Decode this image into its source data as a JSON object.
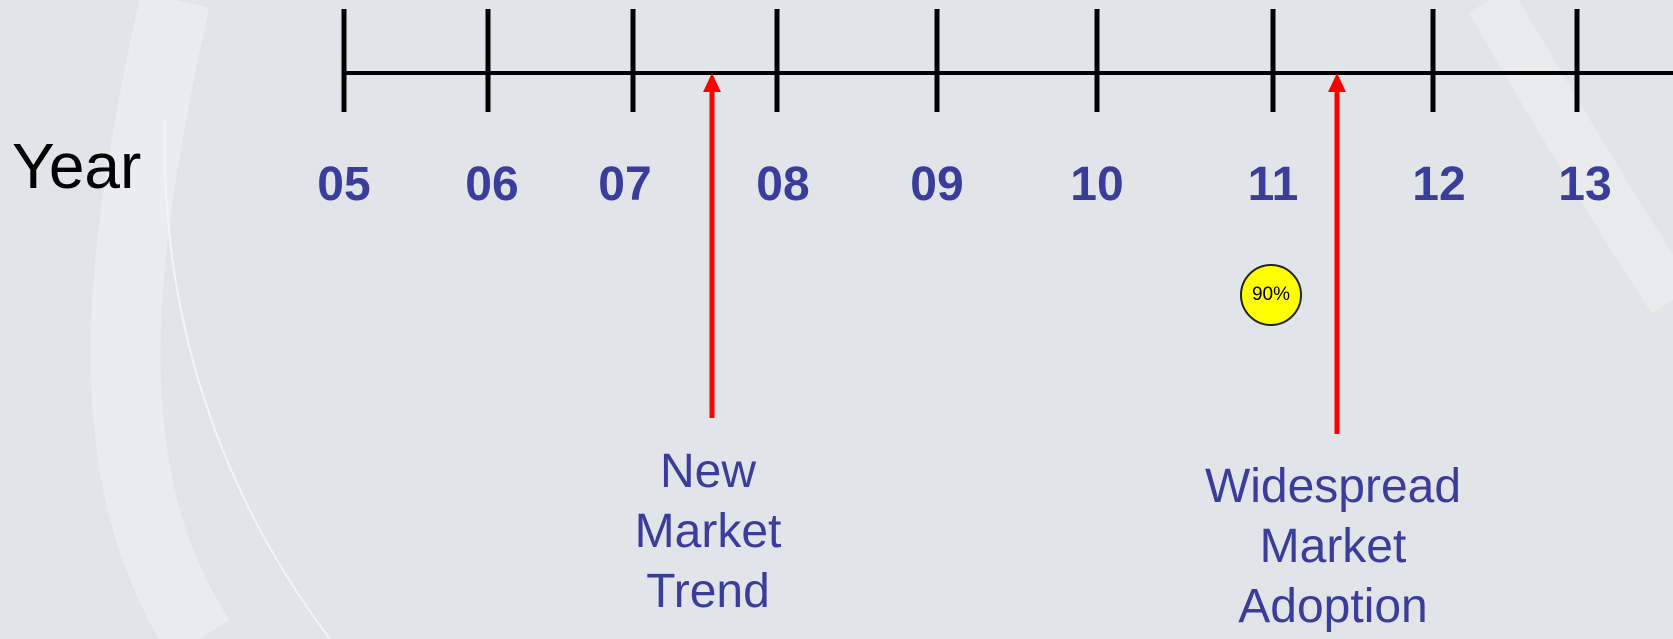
{
  "axis_label": "Year",
  "ticks": [
    {
      "label": "05",
      "year": 2005
    },
    {
      "label": "06",
      "year": 2006
    },
    {
      "label": "07",
      "year": 2007
    },
    {
      "label": "08",
      "year": 2008
    },
    {
      "label": "09",
      "year": 2009
    },
    {
      "label": "10",
      "year": 2010
    },
    {
      "label": "11",
      "year": 2011
    },
    {
      "label": "12",
      "year": 2012
    },
    {
      "label": "13",
      "year": 2013
    }
  ],
  "events": [
    {
      "label": "New\nMarket\nTrend",
      "year": 2007.55
    },
    {
      "label": "Widespread\nMarket\nAdoption",
      "year": 2011.4
    }
  ],
  "badge": {
    "text": "90%",
    "year": 2011
  },
  "colors": {
    "background": "#e1e4e8",
    "axis": "#000000",
    "tick_label": "#3a3d9a",
    "event_label": "#3a3d9a",
    "arrow": "#ff0000",
    "badge_fill": "#ffff00"
  }
}
